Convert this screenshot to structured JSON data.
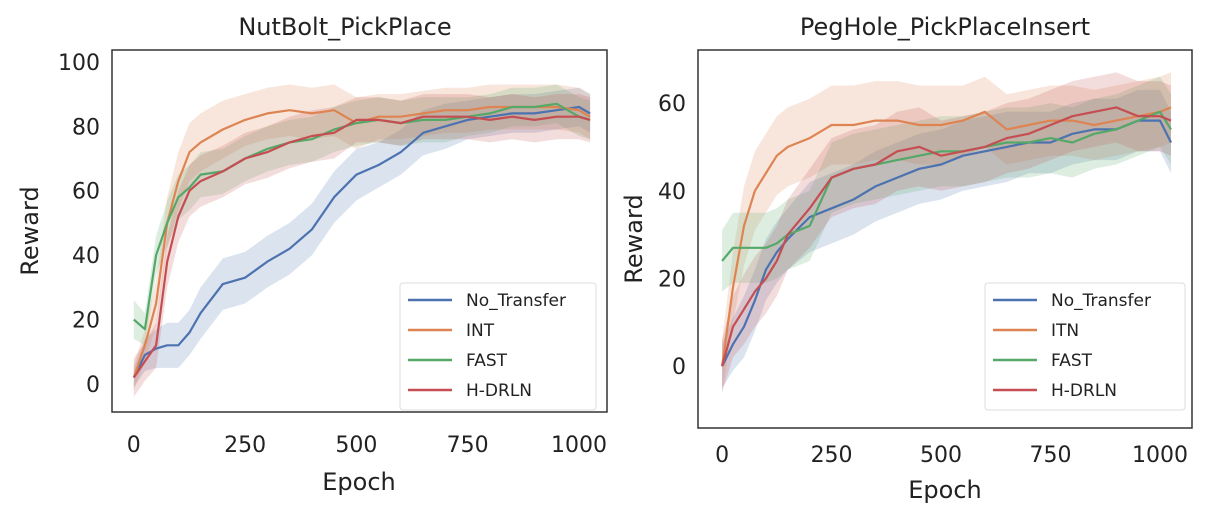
{
  "chart_data": [
    {
      "type": "line",
      "title": "NutBolt_PickPlace",
      "xlabel": "Epoch",
      "ylabel": "Reward",
      "xlim": [
        -49,
        1063
      ],
      "ylim": [
        -8.7,
        103.7
      ],
      "xticks": [
        0,
        250,
        500,
        750,
        1000
      ],
      "yticks": [
        0,
        20,
        40,
        60,
        80,
        100
      ],
      "grid": false,
      "legend_position": "lower-right",
      "x": [
        0,
        25,
        50,
        75,
        100,
        125,
        150,
        200,
        250,
        300,
        350,
        400,
        450,
        500,
        550,
        600,
        650,
        700,
        750,
        800,
        850,
        900,
        950,
        1000,
        1025
      ],
      "series": [
        {
          "name": "No_Transfer",
          "color": "#4c72b0",
          "values": [
            2,
            9,
            11,
            12,
            12,
            16,
            22,
            31,
            33,
            38,
            42,
            48,
            58,
            65,
            68,
            72,
            78,
            80,
            82,
            83,
            84,
            84,
            85,
            86,
            84
          ],
          "band": [
            3,
            5,
            6,
            7,
            7,
            7,
            8,
            8,
            8,
            8,
            8,
            8,
            8,
            8,
            7,
            7,
            7,
            7,
            6,
            6,
            6,
            6,
            6,
            6,
            6
          ]
        },
        {
          "name": "INT",
          "color": "#dd8452",
          "values": [
            2,
            12,
            25,
            50,
            63,
            72,
            75,
            79,
            82,
            84,
            85,
            84,
            85,
            81,
            83,
            83,
            84,
            85,
            85,
            86,
            86,
            86,
            86,
            85,
            83
          ],
          "band": [
            4,
            5,
            7,
            8,
            9,
            9,
            9,
            9,
            8,
            8,
            8,
            8,
            8,
            8,
            7,
            7,
            7,
            7,
            7,
            7,
            7,
            7,
            7,
            7,
            7
          ]
        },
        {
          "name": "FAST",
          "color": "#55a868",
          "values": [
            20,
            17,
            40,
            50,
            58,
            61,
            65,
            66,
            70,
            73,
            75,
            76,
            79,
            81,
            82,
            81,
            82,
            82,
            83,
            84,
            86,
            86,
            87,
            83,
            82
          ],
          "band": [
            6,
            5,
            6,
            7,
            7,
            7,
            7,
            7,
            7,
            7,
            7,
            7,
            7,
            7,
            7,
            7,
            7,
            7,
            6,
            6,
            6,
            6,
            6,
            6,
            6
          ]
        },
        {
          "name": "H-DRLN",
          "color": "#c44e52",
          "values": [
            2,
            7,
            12,
            38,
            52,
            60,
            63,
            66,
            70,
            72,
            75,
            77,
            78,
            82,
            82,
            81,
            83,
            83,
            83,
            82,
            83,
            82,
            83,
            83,
            82
          ],
          "band": [
            6,
            6,
            7,
            8,
            8,
            8,
            8,
            8,
            8,
            8,
            8,
            8,
            8,
            7,
            7,
            7,
            7,
            7,
            7,
            7,
            7,
            7,
            7,
            7,
            7
          ]
        }
      ]
    },
    {
      "type": "line",
      "title": "PegHole_PickPlaceInsert",
      "xlabel": "Epoch",
      "ylabel": "Reward",
      "xlim": [
        -55,
        1073
      ],
      "ylim": [
        -14.1,
        72.1
      ],
      "xticks": [
        0,
        250,
        500,
        750,
        1000
      ],
      "yticks": [
        0,
        20,
        40,
        60
      ],
      "grid": false,
      "legend_position": "lower-right",
      "x": [
        0,
        25,
        50,
        75,
        100,
        125,
        150,
        200,
        250,
        300,
        350,
        400,
        450,
        500,
        550,
        600,
        650,
        700,
        750,
        800,
        850,
        900,
        950,
        1000,
        1025
      ],
      "series": [
        {
          "name": "No_Transfer",
          "color": "#4c72b0",
          "values": [
            0,
            5,
            9,
            15,
            22,
            26,
            29,
            34,
            36,
            38,
            41,
            43,
            45,
            46,
            48,
            49,
            50,
            51,
            51,
            53,
            54,
            54,
            56,
            56,
            51
          ],
          "band": [
            5,
            6,
            7,
            7,
            7,
            7,
            7,
            8,
            8,
            8,
            8,
            8,
            8,
            8,
            8,
            8,
            8,
            7,
            7,
            7,
            7,
            7,
            7,
            7,
            7
          ]
        },
        {
          "name": "ITN",
          "color": "#dd8452",
          "values": [
            0,
            18,
            32,
            40,
            44,
            48,
            50,
            52,
            55,
            55,
            56,
            56,
            55,
            55,
            56,
            58,
            54,
            55,
            56,
            56,
            55,
            56,
            57,
            58,
            59
          ],
          "band": [
            6,
            8,
            9,
            9,
            9,
            9,
            9,
            9,
            9,
            9,
            9,
            9,
            9,
            9,
            8,
            8,
            8,
            8,
            8,
            8,
            8,
            8,
            8,
            8,
            8
          ]
        },
        {
          "name": "FAST",
          "color": "#55a868",
          "values": [
            24,
            27,
            27,
            27,
            27,
            28,
            30,
            32,
            43,
            45,
            46,
            47,
            48,
            49,
            49,
            50,
            51,
            51,
            52,
            51,
            53,
            54,
            56,
            58,
            54
          ],
          "band": [
            7,
            8,
            8,
            8,
            8,
            8,
            8,
            8,
            8,
            8,
            8,
            8,
            8,
            8,
            8,
            8,
            8,
            8,
            8,
            8,
            8,
            8,
            8,
            8,
            8
          ]
        },
        {
          "name": "H-DRLN",
          "color": "#c44e52",
          "values": [
            0,
            9,
            13,
            17,
            20,
            24,
            30,
            36,
            43,
            45,
            46,
            49,
            50,
            48,
            49,
            50,
            52,
            53,
            55,
            57,
            58,
            59,
            57,
            57,
            56
          ],
          "band": [
            6,
            7,
            8,
            8,
            8,
            8,
            8,
            9,
            9,
            9,
            9,
            9,
            9,
            8,
            8,
            8,
            8,
            8,
            8,
            8,
            8,
            8,
            8,
            8,
            8
          ]
        }
      ]
    }
  ]
}
